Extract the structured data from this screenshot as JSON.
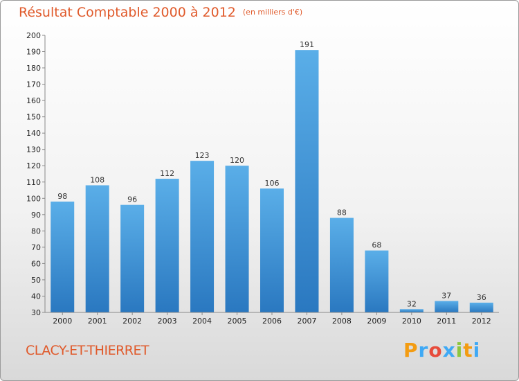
{
  "title": "Résultat Comptable 2000 à 2012",
  "unit_note": "(en milliers d'€)",
  "city": "CLACY-ET-THIERRET",
  "logo": {
    "text": "Proxiti",
    "letters": [
      "P",
      "r",
      "o",
      "x",
      "i",
      "t",
      "i"
    ],
    "colors": [
      "#f39c12",
      "#3fa9f5",
      "#e74c3c",
      "#3fa9f5",
      "#8cc63f",
      "#f39c12",
      "#3fa9f5"
    ]
  },
  "colors": {
    "bar_top": "#5aaee8",
    "bar_bottom": "#2a78c0",
    "title": "#e05a2b"
  },
  "chart_data": {
    "type": "bar",
    "title": "Résultat Comptable 2000 à 2012",
    "xlabel": "",
    "ylabel": "",
    "categories": [
      "2000",
      "2001",
      "2002",
      "2003",
      "2004",
      "2005",
      "2006",
      "2007",
      "2008",
      "2009",
      "2010",
      "2011",
      "2012"
    ],
    "values": [
      98,
      108,
      96,
      112,
      123,
      120,
      106,
      191,
      88,
      68,
      32,
      37,
      36
    ],
    "value_labels": [
      "98",
      "108",
      "96",
      "112",
      "123",
      "120",
      "106",
      "191",
      "88",
      "68",
      "32",
      "37",
      "36"
    ],
    "ylim": [
      30,
      200
    ],
    "yticks": [
      "30",
      "40",
      "50",
      "60",
      "70",
      "80",
      "90",
      "100",
      "110",
      "120",
      "130",
      "140",
      "150",
      "160",
      "170",
      "180",
      "190",
      "200"
    ],
    "grid": false
  }
}
